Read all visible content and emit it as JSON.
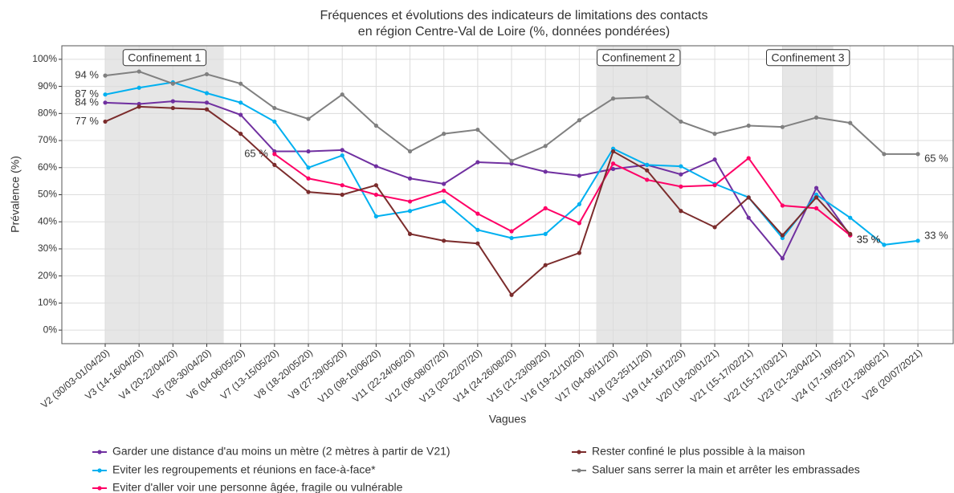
{
  "chart_data": {
    "type": "line",
    "title": [
      "Fréquences et évolutions des indicateurs de limitations des contacts",
      "en région Centre-Val de Loire (%, données pondérées)"
    ],
    "xlabel": "Vagues",
    "ylabel": "Prévalence (%)",
    "categories": [
      "V2 (30/03-01/04/20)",
      "V3 (14-16/04/20)",
      "V4 (20-22/04/20)",
      "V5 (28-30/04/20)",
      "V6 (04-06/05/20)",
      "V7 (13-15/05/20)",
      "V8 (18-20/05/20)",
      "V9 (27-29/05/20)",
      "V10 (08-10/06/20)",
      "V11 (22-24/06/20)",
      "V12 (06-08/07/20)",
      "V13 (20-22/07/20)",
      "V14 (24-26/08/20)",
      "V15 (21-23/09/20)",
      "V16 (19-21/10/20)",
      "V17 (04-06/11/20)",
      "V18 (23-25/11/20)",
      "V19 (14-16/12/20)",
      "V20 (18-20/01/21)",
      "V21 (15-17/02/21)",
      "V22 (15-17/03/21)",
      "V23 (21-23/04/21)",
      "V24 (17-19/05/21)",
      "V25 (21-28/06/21)",
      "V26 (20/07/2021)"
    ],
    "series": [
      {
        "name": "Garder une distance d'au moins un mètre (2 mètres à partir de V21)",
        "color": "#7030a0",
        "values": [
          84,
          83.5,
          84.5,
          84,
          79.5,
          66,
          66,
          66.5,
          60.5,
          56,
          54,
          62,
          61.5,
          58.5,
          57,
          59.5,
          61,
          57.5,
          63,
          41.5,
          26.5,
          52.5,
          35,
          null,
          null
        ],
        "value_labels": [
          "84 %",
          null,
          null,
          null,
          null,
          null,
          null,
          null,
          null,
          null,
          null,
          null,
          null,
          null,
          null,
          null,
          null,
          null,
          null,
          null,
          null,
          null,
          "35 %",
          null,
          null
        ]
      },
      {
        "name": "Eviter les regroupements et réunions en face-à-face*",
        "color": "#00b0f0",
        "values": [
          87,
          89.5,
          91.5,
          87.5,
          84,
          77,
          60,
          64.5,
          42,
          44,
          47.5,
          37,
          34,
          35.5,
          46.5,
          67,
          61,
          60.5,
          54,
          49,
          34,
          50,
          41.5,
          31.5,
          33
        ],
        "value_labels": [
          "87 %",
          null,
          null,
          null,
          null,
          null,
          null,
          null,
          null,
          null,
          null,
          null,
          null,
          null,
          null,
          null,
          null,
          null,
          null,
          null,
          null,
          null,
          null,
          null,
          "33 %"
        ]
      },
      {
        "name": "Eviter d'aller voir une personne âgée, fragile ou vulnérable",
        "color": "#ff0066",
        "values": [
          null,
          null,
          null,
          null,
          null,
          65,
          56,
          53.5,
          50,
          47.5,
          51.5,
          43,
          36.5,
          45,
          39.5,
          61.5,
          55.5,
          53,
          53.5,
          63.5,
          46,
          45,
          35,
          null,
          null
        ],
        "value_labels": [
          null,
          null,
          null,
          null,
          null,
          "65 %",
          null,
          null,
          null,
          null,
          null,
          null,
          null,
          null,
          null,
          null,
          null,
          null,
          null,
          null,
          null,
          null,
          "35 %",
          null,
          null
        ]
      },
      {
        "name": "Rester confiné le plus possible à la maison",
        "color": "#7b2c2c",
        "values": [
          77,
          82.5,
          82,
          81.5,
          72.5,
          61,
          51,
          50,
          53.5,
          35.5,
          33,
          32,
          13,
          24,
          28.5,
          66,
          59,
          44,
          38,
          49,
          35,
          49,
          35.5,
          null,
          null
        ],
        "value_labels": [
          "77 %",
          null,
          null,
          null,
          null,
          null,
          null,
          null,
          null,
          null,
          null,
          null,
          null,
          null,
          null,
          null,
          null,
          null,
          null,
          null,
          null,
          null,
          null,
          null,
          null
        ]
      },
      {
        "name": "Saluer sans serrer la main et arrêter les embrassades",
        "color": "#808080",
        "values": [
          94,
          95.5,
          91,
          94.5,
          91,
          82,
          78,
          87,
          75.5,
          66,
          72.5,
          74,
          62.5,
          68,
          77.5,
          85.5,
          86,
          77,
          72.5,
          75.5,
          75,
          78.5,
          76.5,
          65,
          65
        ],
        "value_labels": [
          "94 %",
          null,
          null,
          null,
          null,
          null,
          null,
          null,
          null,
          null,
          null,
          null,
          null,
          null,
          null,
          null,
          null,
          null,
          null,
          null,
          null,
          null,
          null,
          null,
          "65 %"
        ]
      }
    ],
    "shaded": [
      {
        "label": "Confinement 1",
        "start": 0,
        "end": 3.5
      },
      {
        "label": "Confinement 2",
        "start": 14.5,
        "end": 17
      },
      {
        "label": "Confinement 3",
        "start": 20,
        "end": 21.5
      }
    ],
    "ylim": [
      -5,
      105
    ],
    "yticks": [
      {
        "value": 0,
        "label": "0%"
      },
      {
        "value": 10,
        "label": "10%"
      },
      {
        "value": 20,
        "label": "20%"
      },
      {
        "value": 30,
        "label": "30%"
      },
      {
        "value": 40,
        "label": "40%"
      },
      {
        "value": 50,
        "label": "50%"
      },
      {
        "value": 60,
        "label": "60%"
      },
      {
        "value": 70,
        "label": "70%"
      },
      {
        "value": 80,
        "label": "80%"
      },
      {
        "value": 90,
        "label": "90%"
      },
      {
        "value": 100,
        "label": "100%"
      }
    ],
    "grid": true
  }
}
